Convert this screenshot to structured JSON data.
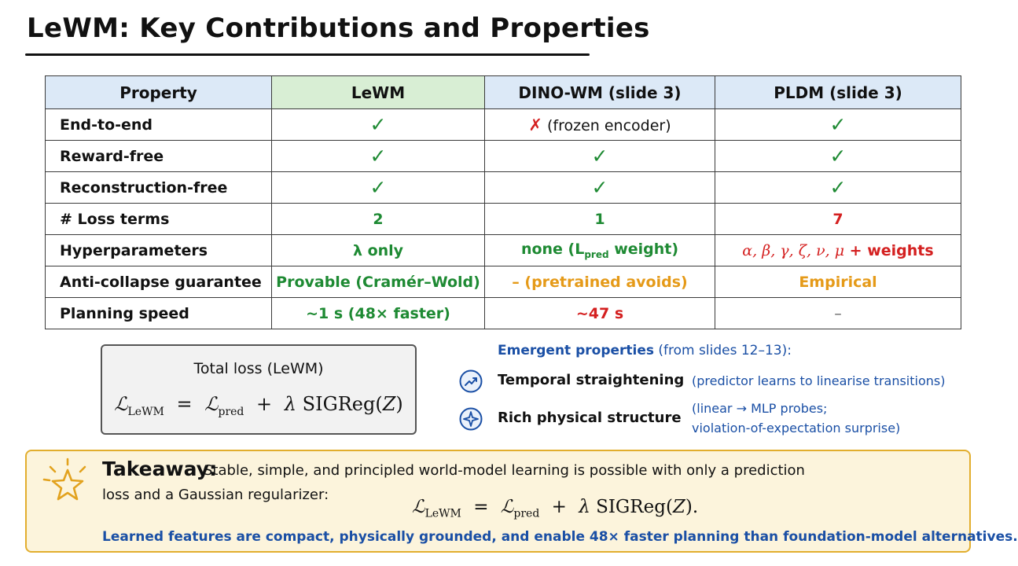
{
  "title": "LeWM: Key Contributions and Properties",
  "table": {
    "headers": [
      "Property",
      "LeWM",
      "DINO-WM (slide 3)",
      "PLDM (slide 3)"
    ],
    "rows": [
      {
        "property": "End-to-end",
        "lewm": "✓",
        "dino_mark": "✗",
        "dino_text": "(frozen encoder)",
        "pldm": "✓"
      },
      {
        "property": "Reward-free",
        "lewm": "✓",
        "dino": "✓",
        "pldm": "✓"
      },
      {
        "property": "Reconstruction-free",
        "lewm": "✓",
        "dino": "✓",
        "pldm": "✓"
      },
      {
        "property": "# Loss terms",
        "lewm": "2",
        "dino": "1",
        "pldm": "7"
      },
      {
        "property": "Hyperparameters",
        "lewm": "λ only",
        "dino_pre": "none (L",
        "dino_sub": "pred",
        "dino_post": " weight)",
        "pldm_math": "α, β, γ, ζ, ν, μ",
        "pldm_post": " + weights"
      },
      {
        "property": "Anti-collapse guarantee",
        "lewm": "Provable (Cramér–Wold)",
        "dino": "– (pretrained avoids)",
        "pldm": "Empirical"
      },
      {
        "property": "Planning speed",
        "lewm": "~1 s (48× faster)",
        "dino": "~47 s",
        "pldm": "–"
      }
    ]
  },
  "loss_box": {
    "title": "Total loss (LeWM)",
    "equation": {
      "lhs": "ℒ",
      "lhs_sub": "LeWM",
      "eq": "=",
      "t1": "ℒ",
      "t1_sub": "pred",
      "plus": "+",
      "lambda": "λ",
      "fn": "SIGReg(",
      "arg": "Z",
      "close": ")"
    }
  },
  "emergent": {
    "heading_bold": "Emergent properties",
    "heading_rest": " (from slides 12–13):",
    "items": [
      {
        "icon": "trend-up-icon",
        "label": "Temporal straightening",
        "desc": [
          "(predictor learns to linearise transitions)"
        ]
      },
      {
        "icon": "sparkle-icon",
        "label": "Rich physical structure",
        "desc": [
          "(linear → MLP probes;",
          "violation-of-expectation surprise)"
        ]
      }
    ]
  },
  "takeaway": {
    "icon": "star-icon",
    "label": "Takeaway:",
    "line1": "Stable, simple, and principled world-model learning is possible with only a prediction",
    "line2": "loss and a Gaussian regularizer:",
    "equation": {
      "lhs": "ℒ",
      "lhs_sub": "LeWM",
      "eq": "=",
      "t1": "ℒ",
      "t1_sub": "pred",
      "plus": "+",
      "lambda": "λ",
      "fn": "SIGReg(",
      "arg": "Z",
      "close": ")."
    },
    "footer": "Learned features are compact, physically grounded, and enable 48× faster planning than foundation-model alternatives."
  },
  "colors": {
    "accent_blue": "#1a4fa5",
    "good_green": "#1e8a33",
    "bad_red": "#d42020",
    "warn_orange": "#e59a18",
    "takeaway_border": "#e2ae2e"
  }
}
